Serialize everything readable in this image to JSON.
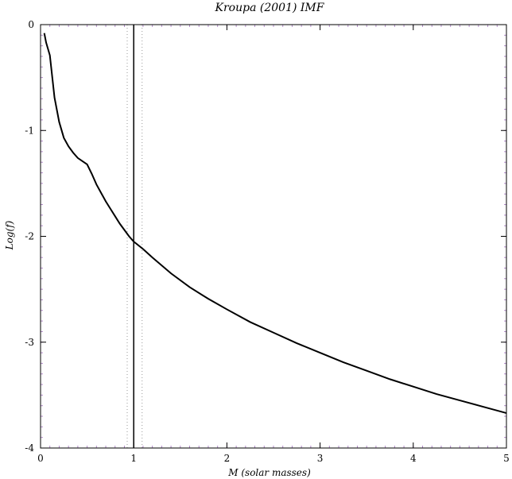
{
  "chart_data": {
    "type": "line",
    "title": "Kroupa (2001) IMF",
    "xlabel": "M (solar masses)",
    "ylabel": "Log(f)",
    "xlim": [
      0,
      5
    ],
    "ylim": [
      -4,
      0
    ],
    "x_ticks": [
      0,
      1,
      2,
      3,
      4,
      5
    ],
    "y_ticks": [
      0,
      -1,
      -2,
      -3,
      -4
    ],
    "grid": false,
    "legend": "none",
    "series": [
      {
        "x": [
          0.04,
          0.06,
          0.08,
          0.1,
          0.15,
          0.2,
          0.25,
          0.3,
          0.35,
          0.4,
          0.45,
          0.5,
          0.55,
          0.6,
          0.65,
          0.7,
          0.75,
          0.8,
          0.85,
          0.9,
          0.95,
          1.0,
          1.1,
          1.2,
          1.4,
          1.6,
          1.8,
          2.0,
          2.25,
          2.5,
          2.75,
          3.0,
          3.25,
          3.5,
          3.75,
          4.0,
          4.25,
          4.5,
          4.75,
          5.0
        ],
        "y": [
          -0.08,
          -0.17,
          -0.23,
          -0.29,
          -0.69,
          -0.92,
          -1.07,
          -1.15,
          -1.21,
          -1.26,
          -1.29,
          -1.32,
          -1.41,
          -1.51,
          -1.59,
          -1.67,
          -1.74,
          -1.81,
          -1.88,
          -1.94,
          -2.0,
          -2.05,
          -2.12,
          -2.2,
          -2.35,
          -2.48,
          -2.59,
          -2.69,
          -2.81,
          -2.91,
          -3.01,
          -3.1,
          -3.19,
          -3.27,
          -3.35,
          -3.42,
          -3.49,
          -3.55,
          -3.61,
          -3.67
        ]
      }
    ],
    "vertical_lines": [
      {
        "x": 1.0,
        "style": "solid"
      },
      {
        "x": 0.93,
        "style": "dotted"
      },
      {
        "x": 1.09,
        "style": "dotted"
      }
    ],
    "colors": {
      "line": "#000000",
      "frame": "#000000",
      "minor_ticks": "#b088c8",
      "dotted": "#999999"
    }
  }
}
